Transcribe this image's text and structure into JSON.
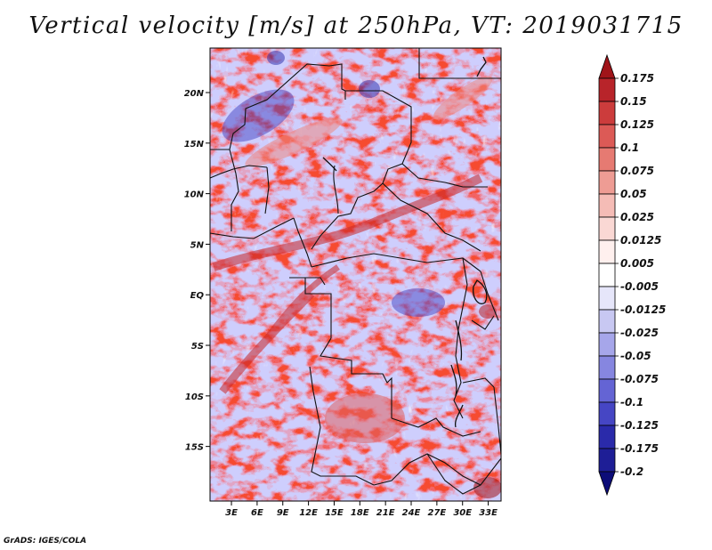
{
  "title": "Vertical velocity [m/s] at 250hPa, VT: 2019031715",
  "credit": "GrADS: IGES/COLA",
  "map": {
    "lat_labels": [
      "20N",
      "15N",
      "10N",
      "5N",
      "EQ",
      "5S",
      "10S",
      "15S"
    ],
    "lat_values": [
      20,
      15,
      10,
      5,
      0,
      -5,
      -10,
      -15
    ],
    "lon_labels": [
      "3E",
      "6E",
      "9E",
      "12E",
      "15E",
      "18E",
      "21E",
      "24E",
      "27E",
      "30E",
      "33E"
    ],
    "lon_values": [
      3,
      6,
      9,
      12,
      15,
      18,
      21,
      24,
      27,
      30,
      33
    ]
  },
  "colorbar": {
    "levels": [
      "0.175",
      "0.15",
      "0.125",
      "0.1",
      "0.075",
      "0.05",
      "0.025",
      "0.0125",
      "0.005",
      "-0.005",
      "-0.0125",
      "-0.025",
      "-0.05",
      "-0.075",
      "-0.1",
      "-0.125",
      "-0.175",
      "-0.2"
    ],
    "colors": [
      "#a01419",
      "#b8242a",
      "#cc3c3c",
      "#dc5a56",
      "#e67a72",
      "#ee9c94",
      "#f5bcb6",
      "#fad8d4",
      "#fff0ee",
      "#ffffff",
      "#e6e6fa",
      "#c8c8f2",
      "#a6a6ea",
      "#8686e0",
      "#6464d4",
      "#4646c4",
      "#2a2aaa",
      "#1e1e96",
      "#0c0c78"
    ]
  }
}
